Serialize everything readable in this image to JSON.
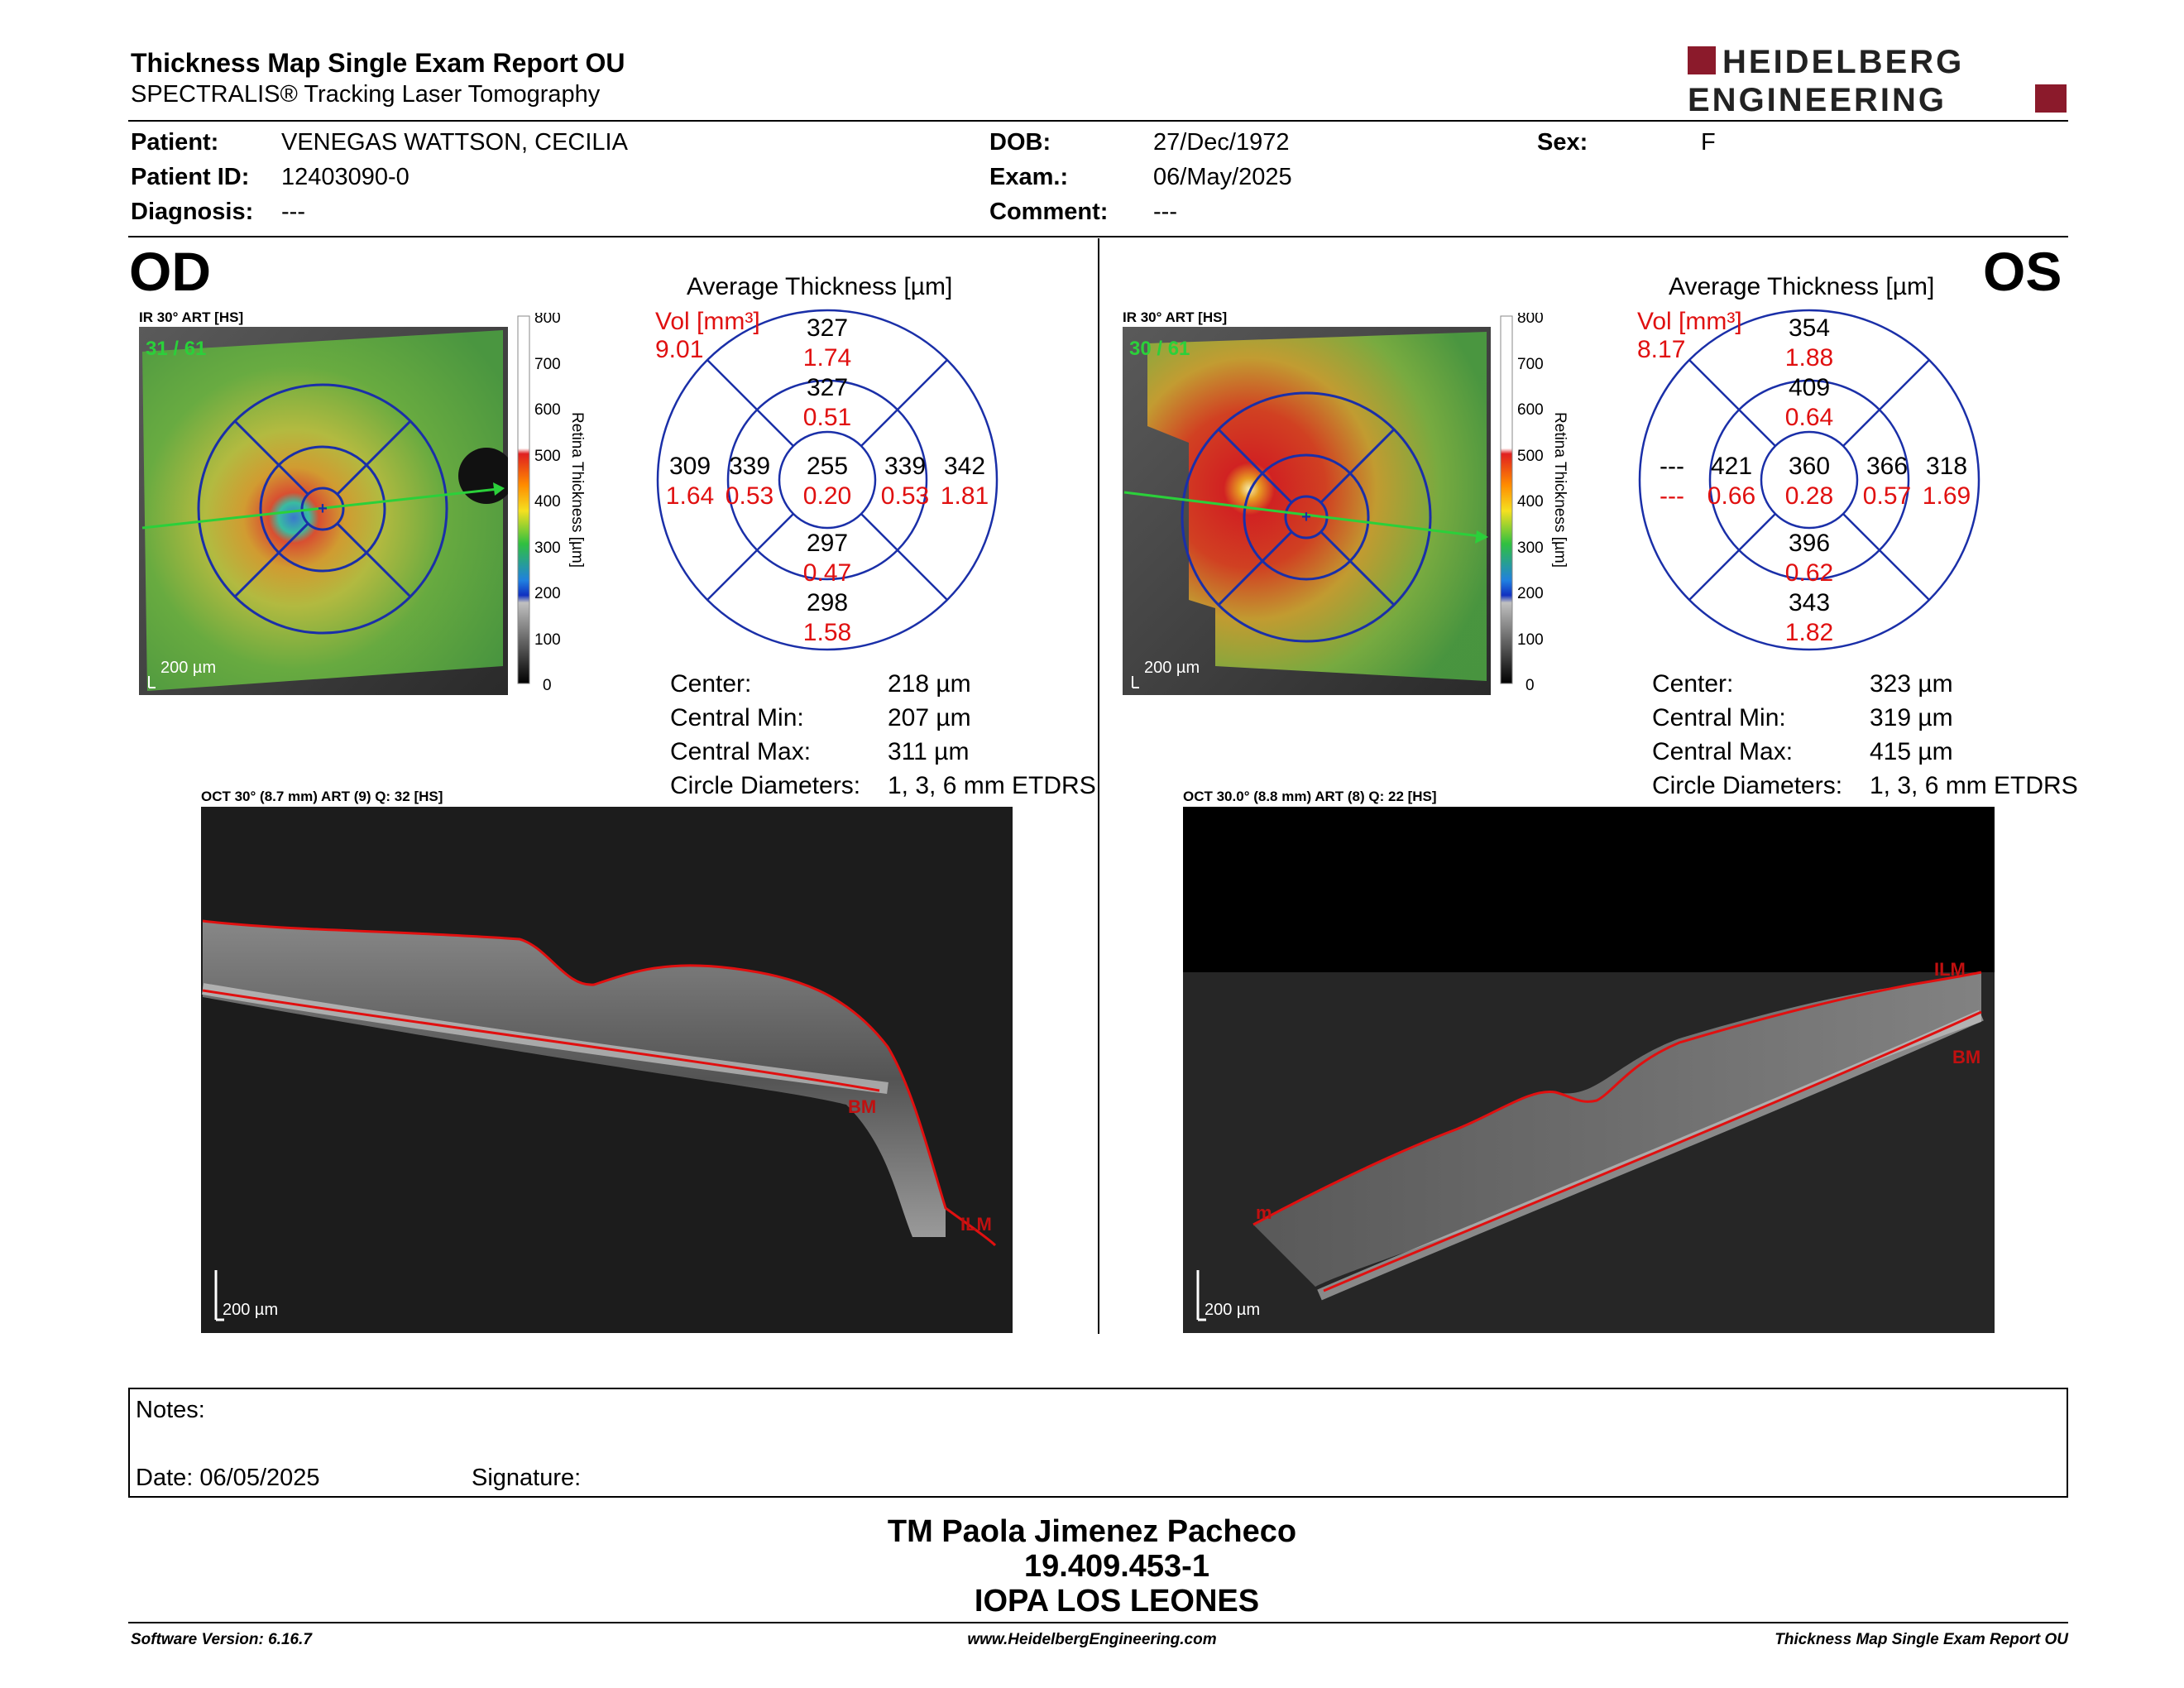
{
  "header": {
    "title": "Thickness Map Single Exam Report OU",
    "subtitle": "SPECTRALIS® Tracking Laser Tomography",
    "logo_line1": "HEIDELBERG",
    "logo_line2": "ENGINEERING"
  },
  "patient": {
    "patient_label": "Patient:",
    "patient_value": "VENEGAS WATTSON, CECILIA",
    "id_label": "Patient ID:",
    "id_value": "12403090-0",
    "diagnosis_label": "Diagnosis:",
    "diagnosis_value": "---",
    "dob_label": "DOB:",
    "dob_value": "27/Dec/1972",
    "exam_label": "Exam.:",
    "exam_value": "06/May/2025",
    "comment_label": "Comment:",
    "comment_value": "---",
    "sex_label": "Sex:",
    "sex_value": "F"
  },
  "od": {
    "eye_label": "OD",
    "ir_label": "IR 30° ART [HS]",
    "ir_count": "31 / 61",
    "scale_label": "200 µm",
    "colorbar_ticks": [
      "800",
      "700",
      "600",
      "500",
      "400",
      "300",
      "200",
      "100",
      "0"
    ],
    "colorbar_title": "Retina Thickness [µm]",
    "avg_title": "Average Thickness [µm]",
    "vol_label": "Vol [mm³]",
    "vol_value": "9.01",
    "grid": {
      "center": {
        "t": "255",
        "v": "0.20"
      },
      "inner_top": {
        "t": "327",
        "v": "0.51"
      },
      "inner_bottom": {
        "t": "297",
        "v": "0.47"
      },
      "inner_left": {
        "t": "339",
        "v": "0.53"
      },
      "inner_right": {
        "t": "339",
        "v": "0.53"
      },
      "outer_top": {
        "t": "327",
        "v": "1.74"
      },
      "outer_bottom": {
        "t": "298",
        "v": "1.58"
      },
      "outer_left": {
        "t": "309",
        "v": "1.64"
      },
      "outer_right": {
        "t": "342",
        "v": "1.81"
      }
    },
    "stats": {
      "center_label": "Center:",
      "center_value": "218 µm",
      "min_label": "Central Min:",
      "min_value": "207 µm",
      "max_label": "Central Max:",
      "max_value": "311 µm",
      "diam_label": "Circle Diameters:",
      "diam_value": "1, 3, 6 mm ETDRS"
    },
    "oct_label": "OCT 30° (8.7 mm) ART (9) Q: 32 [HS]",
    "oct_bm": "BM",
    "oct_ilm": "ILM",
    "oct_scale": "200 µm"
  },
  "os": {
    "eye_label": "OS",
    "ir_label": "IR 30° ART [HS]",
    "ir_count": "30 / 61",
    "scale_label": "200 µm",
    "colorbar_ticks": [
      "800",
      "700",
      "600",
      "500",
      "400",
      "300",
      "200",
      "100",
      "0"
    ],
    "colorbar_title": "Retina Thickness [µm]",
    "avg_title": "Average Thickness [µm]",
    "vol_label": "Vol [mm³]",
    "vol_value": "8.17",
    "grid": {
      "center": {
        "t": "360",
        "v": "0.28"
      },
      "inner_top": {
        "t": "409",
        "v": "0.64"
      },
      "inner_bottom": {
        "t": "396",
        "v": "0.62"
      },
      "inner_left": {
        "t": "421",
        "v": "0.66"
      },
      "inner_right": {
        "t": "366",
        "v": "0.57"
      },
      "outer_top": {
        "t": "354",
        "v": "1.88"
      },
      "outer_bottom": {
        "t": "343",
        "v": "1.82"
      },
      "outer_left": {
        "t": "---",
        "v": "---"
      },
      "outer_right": {
        "t": "318",
        "v": "1.69"
      }
    },
    "stats": {
      "center_label": "Center:",
      "center_value": "323 µm",
      "min_label": "Central Min:",
      "min_value": "319 µm",
      "max_label": "Central Max:",
      "max_value": "415 µm",
      "diam_label": "Circle Diameters:",
      "diam_value": "1, 3, 6 mm ETDRS"
    },
    "oct_label": "OCT 30.0° (8.8 mm) ART (8) Q: 22 [HS]",
    "oct_bm": "BM",
    "oct_ilm": "ILM",
    "oct_m": "m",
    "oct_scale": "200 µm"
  },
  "notes": {
    "notes_label": "Notes:",
    "date_label": "Date: 06/05/2025",
    "signature_label": "Signature:"
  },
  "signature": {
    "line1": "TM Paola Jimenez Pacheco",
    "line2": "19.409.453-1",
    "line3": "IOPA LOS LEONES"
  },
  "footer": {
    "software": "Software Version: 6.16.7",
    "website": "www.HeidelbergEngineering.com",
    "report": "Thickness Map Single Exam Report OU"
  }
}
